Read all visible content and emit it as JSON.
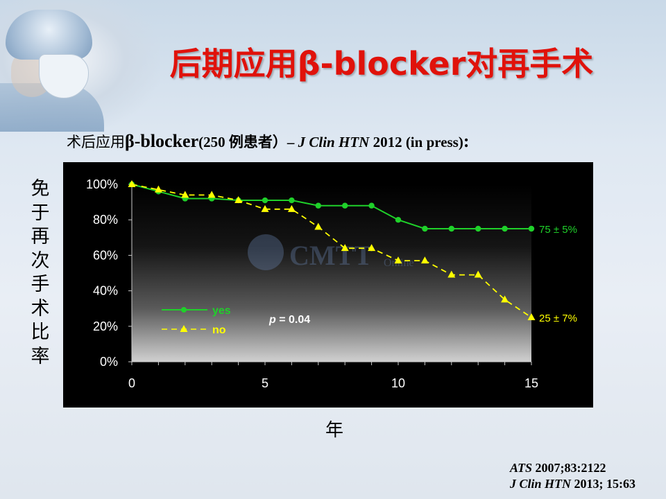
{
  "title": "后期应用β-blocker对再手术",
  "subtitle": {
    "part1": "术后应用",
    "part2": "β-blocker",
    "part3": "(250 例患者）– ",
    "part4": "J Clin HTN",
    "part5": " 2012 (in press)",
    "part6": ":"
  },
  "y_axis_label": "免于再次手术比率",
  "x_axis_label": "年",
  "watermark": "CMTT",
  "watermark_sub": "Online",
  "citations": [
    {
      "journal": "ATS",
      "ref": " 2007;83:2122"
    },
    {
      "journal": "J Clin HTN",
      "ref": " 2013; 15:63"
    }
  ],
  "colors": {
    "title": "#e0120b",
    "yes_series": "#1fd12a",
    "no_series": "#ffff00",
    "plot_bg_top": "#000000",
    "plot_bg_bottom": "#cfcfcf"
  },
  "chart_data": {
    "type": "line",
    "ylim": [
      0,
      100
    ],
    "xlim": [
      0,
      15
    ],
    "y_ticks": [
      "0%",
      "20%",
      "40%",
      "60%",
      "80%",
      "100%"
    ],
    "x_ticks": [
      "0",
      "5",
      "10",
      "15"
    ],
    "legend_position": "bottom-left",
    "annotation": {
      "prefix": "p",
      "text": " =  0.04"
    },
    "series": [
      {
        "name": "yes",
        "color": "#1fd12a",
        "marker": "circle",
        "line": "solid",
        "x": [
          0,
          1,
          2,
          3,
          4,
          5,
          6,
          7,
          8,
          9,
          10,
          11,
          12,
          13,
          14,
          15
        ],
        "y": [
          100,
          96,
          92,
          92,
          91,
          91,
          91,
          88,
          88,
          88,
          80,
          75,
          75,
          75,
          75,
          75
        ],
        "end_label": "75 ± 5%"
      },
      {
        "name": "no",
        "color": "#ffff00",
        "marker": "triangle",
        "line": "dashed",
        "x": [
          0,
          1,
          2,
          3,
          4,
          5,
          6,
          7,
          8,
          9,
          10,
          11,
          12,
          13,
          14,
          15
        ],
        "y": [
          100,
          97,
          94,
          94,
          91,
          86,
          86,
          76,
          64,
          64,
          57,
          57,
          49,
          49,
          35,
          25
        ],
        "end_label": "25 ± 7%"
      }
    ]
  }
}
